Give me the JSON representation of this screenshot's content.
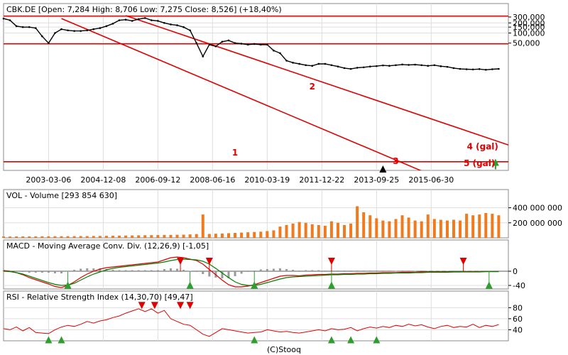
{
  "header": {
    "title": "CBK.DE [Open: 7,284  High: 8,706  Low: 7,275  Close: 8,526] (+18,40%)",
    "credit": "(C)Stooq"
  },
  "colors": {
    "price": "#000000",
    "channel": "#e00000",
    "volume": "#f07a1e",
    "macd": "#e00000",
    "signal": "#008000",
    "histogram": "#999999",
    "rsi": "#e00000",
    "arrow_up": "#2e9e2e",
    "arrow_down": "#e00000"
  },
  "chart_data": [
    {
      "type": "line",
      "title": "CBK.DE [Open: 7,284  High: 8,706  Low: 7,275  Close: 8,526] (+18,40%)",
      "scale": "log",
      "ylim": [
        8,
        330000
      ],
      "y_ticks": [
        "300,000",
        "200,000",
        "150,000",
        "100,000",
        "50,000"
      ],
      "y_tick_values": [
        300000,
        200000,
        150000,
        100000,
        50000
      ],
      "x_ticks": [
        "2003-03-06",
        "2004-12-08",
        "2006-09-12",
        "2008-06-16",
        "2010-03-19",
        "2011-12-22",
        "2013-09-25",
        "2015-06-30"
      ],
      "x_tick_index": [
        14,
        31,
        48,
        65,
        82,
        99,
        116,
        133
      ],
      "x": [
        0,
        2,
        4,
        6,
        8,
        10,
        12,
        14,
        16,
        18,
        20,
        22,
        24,
        26,
        28,
        30,
        32,
        34,
        36,
        38,
        40,
        42,
        44,
        46,
        48,
        50,
        52,
        54,
        56,
        58,
        60,
        62,
        64,
        66,
        68,
        70,
        72,
        74,
        76,
        78,
        80,
        82,
        84,
        86,
        88,
        90,
        92,
        94,
        96,
        98,
        100,
        102,
        104,
        106,
        108,
        110,
        112,
        114,
        116,
        118,
        120,
        122,
        124,
        126,
        128,
        130,
        132,
        134,
        136,
        138,
        140,
        142,
        144,
        146,
        148,
        150,
        152,
        154
      ],
      "series": [
        {
          "values": [
            270000,
            240000,
            160000,
            150000,
            150000,
            140000,
            80000,
            50000,
            100000,
            130000,
            120000,
            115000,
            115000,
            120000,
            130000,
            140000,
            160000,
            190000,
            240000,
            250000,
            230000,
            260000,
            280000,
            240000,
            230000,
            200000,
            180000,
            170000,
            150000,
            120000,
            50000,
            20000,
            45000,
            40000,
            55000,
            60000,
            50000,
            48000,
            45000,
            47000,
            45000,
            45000,
            30000,
            25000,
            15000,
            13000,
            12000,
            11000,
            10500,
            12000,
            12000,
            11000,
            10000,
            9000,
            8500,
            9200,
            9500,
            10000,
            10300,
            10800,
            10500,
            11000,
            11500,
            11200,
            11400,
            11000,
            10500,
            11000,
            10200,
            9800,
            9000,
            8500,
            8300,
            8200,
            8400,
            8000,
            8300,
            8526
          ]
        }
      ],
      "lines": [
        {
          "kind": "channel",
          "label": "2",
          "from": {
            "x": 38,
            "y": 330000
          },
          "to": {
            "x": 170,
            "y": 17.4
          }
        },
        {
          "kind": "channel",
          "label": "1",
          "from": {
            "x": 18,
            "y": 270000
          },
          "to": {
            "x": 130,
            "y": 7.74
          }
        },
        {
          "kind": "horizontal",
          "y": 320000
        },
        {
          "kind": "horizontal",
          "y": 47500
        },
        {
          "kind": "horizontal",
          "y": 14.5
        }
      ],
      "annotations": [
        {
          "label": "1",
          "x": 72,
          "y": 22.5
        },
        {
          "label": "2",
          "x": 96,
          "y": 2060
        },
        {
          "label": "3",
          "x": 122,
          "y": 12.4
        },
        {
          "label": "4 (gal)",
          "x": 149,
          "y": 34
        },
        {
          "label": "5 (gal)",
          "x": 148,
          "y": 10.6
        }
      ],
      "markers": [
        {
          "shape": "triangle-up",
          "x": 118,
          "y": 8.8
        },
        {
          "shape": "arrow-up",
          "x": 153,
          "y": 11.5
        }
      ]
    },
    {
      "type": "bar",
      "title": "VOL - Volume [293 854 630]",
      "ylim": [
        0,
        500000000
      ],
      "y_ticks": [
        "400 000 000",
        "200 000 000"
      ],
      "y_tick_values": [
        400000000,
        200000000
      ],
      "x": [
        0,
        2,
        4,
        6,
        8,
        10,
        12,
        14,
        16,
        18,
        20,
        22,
        24,
        26,
        28,
        30,
        32,
        34,
        36,
        38,
        40,
        42,
        44,
        46,
        48,
        50,
        52,
        54,
        56,
        58,
        60,
        62,
        64,
        66,
        68,
        70,
        72,
        74,
        76,
        78,
        80,
        82,
        84,
        86,
        88,
        90,
        92,
        94,
        96,
        98,
        100,
        102,
        104,
        106,
        108,
        110,
        112,
        114,
        116,
        118,
        120,
        122,
        124,
        126,
        128,
        130,
        132,
        134,
        136,
        138,
        140,
        142,
        144,
        146,
        148,
        150,
        152,
        154
      ],
      "values": [
        18000000,
        18000000,
        19000000,
        19000000,
        20000000,
        20000000,
        21000000,
        21000000,
        22000000,
        22000000,
        22000000,
        23000000,
        24000000,
        24000000,
        25000000,
        26000000,
        27000000,
        28000000,
        30000000,
        31000000,
        32000000,
        34000000,
        35000000,
        36000000,
        37000000,
        38000000,
        39000000,
        41000000,
        42000000,
        46000000,
        50000000,
        310000000,
        52000000,
        55000000,
        58000000,
        62000000,
        66000000,
        70000000,
        74000000,
        78000000,
        82000000,
        90000000,
        100000000,
        150000000,
        170000000,
        190000000,
        210000000,
        200000000,
        180000000,
        170000000,
        160000000,
        220000000,
        200000000,
        170000000,
        190000000,
        420000000,
        340000000,
        300000000,
        260000000,
        230000000,
        220000000,
        250000000,
        300000000,
        270000000,
        230000000,
        220000000,
        310000000,
        250000000,
        240000000,
        230000000,
        240000000,
        230000000,
        320000000,
        300000000,
        310000000,
        330000000,
        320000000,
        300000000
      ]
    },
    {
      "type": "line",
      "title": "MACD - Moving Average Conv. Div. (12,26,9) [-1,05]",
      "ylim": [
        -50,
        60
      ],
      "y_ticks": [
        "0",
        "-40"
      ],
      "y_tick_values": [
        0,
        -40
      ],
      "x": [
        0,
        2,
        4,
        6,
        8,
        10,
        12,
        14,
        16,
        18,
        20,
        22,
        24,
        26,
        28,
        30,
        32,
        34,
        36,
        38,
        40,
        42,
        44,
        46,
        48,
        50,
        52,
        54,
        56,
        58,
        60,
        62,
        64,
        66,
        68,
        70,
        72,
        74,
        76,
        78,
        80,
        82,
        84,
        86,
        88,
        90,
        92,
        94,
        96,
        98,
        100,
        102,
        104,
        106,
        108,
        110,
        112,
        114,
        116,
        118,
        120,
        122,
        124,
        126,
        128,
        130,
        132,
        134,
        136,
        138,
        140,
        142,
        144,
        146,
        148,
        150,
        152,
        154
      ],
      "series": [
        {
          "name": "MACD",
          "values": [
            2,
            0,
            -4,
            -10,
            -18,
            -24,
            -30,
            -36,
            -43,
            -46,
            -40,
            -30,
            -18,
            -8,
            0,
            6,
            10,
            12,
            14,
            16,
            18,
            20,
            22,
            24,
            26,
            32,
            38,
            40,
            38,
            34,
            30,
            20,
            5,
            -10,
            -25,
            -38,
            -44,
            -44,
            -42,
            -38,
            -32,
            -26,
            -20,
            -14,
            -12,
            -12,
            -13,
            -11,
            -10,
            -9,
            -9,
            -8,
            -8,
            -7,
            -7,
            -6,
            -6,
            -5,
            -5,
            -4,
            -4,
            -4,
            -3,
            -3,
            -3,
            -2,
            -2,
            -2,
            -2,
            -2,
            -2,
            -2,
            -1,
            -1,
            -1,
            -1,
            -1,
            -1.05
          ]
        },
        {
          "name": "Signal",
          "values": [
            0,
            -1,
            -4,
            -8,
            -14,
            -20,
            -26,
            -32,
            -37,
            -40,
            -39,
            -34,
            -25,
            -16,
            -8,
            -2,
            4,
            8,
            11,
            13,
            15,
            17,
            19,
            21,
            23,
            26,
            30,
            33,
            34,
            33,
            32,
            28,
            20,
            8,
            -5,
            -18,
            -30,
            -37,
            -40,
            -40,
            -37,
            -32,
            -27,
            -22,
            -18,
            -16,
            -15,
            -14,
            -13,
            -12,
            -11,
            -10,
            -10,
            -9,
            -9,
            -8,
            -8,
            -7,
            -7,
            -6,
            -6,
            -5,
            -5,
            -5,
            -4,
            -4,
            -3,
            -3,
            -3,
            -3,
            -2,
            -2,
            -2,
            -2,
            -2,
            -1,
            -1,
            -1
          ]
        }
      ],
      "markers": [
        {
          "shape": "triangle-down",
          "x": 55,
          "y": 28
        },
        {
          "shape": "triangle-down",
          "x": 64,
          "y": 28
        },
        {
          "shape": "triangle-down",
          "x": 102,
          "y": 28
        },
        {
          "shape": "triangle-down",
          "x": 143,
          "y": 28
        },
        {
          "shape": "triangle-up",
          "x": 20,
          "y": -39
        },
        {
          "shape": "triangle-up",
          "x": 58,
          "y": -39
        },
        {
          "shape": "triangle-up",
          "x": 78,
          "y": -39
        },
        {
          "shape": "triangle-up",
          "x": 102,
          "y": -39
        },
        {
          "shape": "triangle-up",
          "x": 151,
          "y": -39
        }
      ]
    },
    {
      "type": "line",
      "title": "RSI - Relative Strength Index (14,30,70) [49,47]",
      "ylim": [
        20,
        92
      ],
      "y_ticks": [
        "80",
        "60",
        "40"
      ],
      "y_tick_values": [
        80,
        60,
        40
      ],
      "x": [
        0,
        2,
        4,
        6,
        8,
        10,
        12,
        14,
        16,
        18,
        20,
        22,
        24,
        26,
        28,
        30,
        32,
        34,
        36,
        38,
        40,
        42,
        44,
        46,
        48,
        50,
        52,
        54,
        56,
        58,
        60,
        62,
        64,
        66,
        68,
        70,
        72,
        74,
        76,
        78,
        80,
        82,
        84,
        86,
        88,
        90,
        92,
        94,
        96,
        98,
        100,
        102,
        104,
        106,
        108,
        110,
        112,
        114,
        116,
        118,
        120,
        122,
        124,
        126,
        128,
        130,
        132,
        134,
        136,
        138,
        140,
        142,
        144,
        146,
        148,
        150,
        152,
        154
      ],
      "series": [
        {
          "name": "RSI",
          "values": [
            42,
            40,
            45,
            38,
            44,
            35,
            34,
            33,
            40,
            45,
            48,
            46,
            50,
            55,
            52,
            56,
            58,
            62,
            65,
            70,
            74,
            78,
            73,
            78,
            70,
            75,
            60,
            55,
            50,
            48,
            40,
            32,
            28,
            35,
            42,
            40,
            38,
            36,
            34,
            35,
            36,
            40,
            38,
            36,
            37,
            35,
            34,
            36,
            38,
            40,
            38,
            42,
            40,
            41,
            44,
            38,
            42,
            45,
            43,
            46,
            44,
            48,
            46,
            50,
            47,
            49,
            45,
            42,
            46,
            48,
            44,
            46,
            45,
            50,
            44,
            48,
            46,
            49.47
          ]
        }
      ],
      "lines": [
        {
          "kind": "horizontal",
          "y": 70
        },
        {
          "kind": "horizontal",
          "y": 30
        }
      ],
      "markers": [
        {
          "shape": "triangle-down",
          "x": 43,
          "y": 84
        },
        {
          "shape": "triangle-down",
          "x": 47,
          "y": 84
        },
        {
          "shape": "triangle-down",
          "x": 55,
          "y": 84
        },
        {
          "shape": "triangle-down",
          "x": 58,
          "y": 84
        },
        {
          "shape": "triangle-up",
          "x": 14,
          "y": 22
        },
        {
          "shape": "triangle-up",
          "x": 18,
          "y": 22
        },
        {
          "shape": "triangle-up",
          "x": 78,
          "y": 22
        },
        {
          "shape": "triangle-up",
          "x": 102,
          "y": 22
        },
        {
          "shape": "triangle-up",
          "x": 108,
          "y": 22
        },
        {
          "shape": "triangle-up",
          "x": 116,
          "y": 22
        }
      ]
    }
  ]
}
